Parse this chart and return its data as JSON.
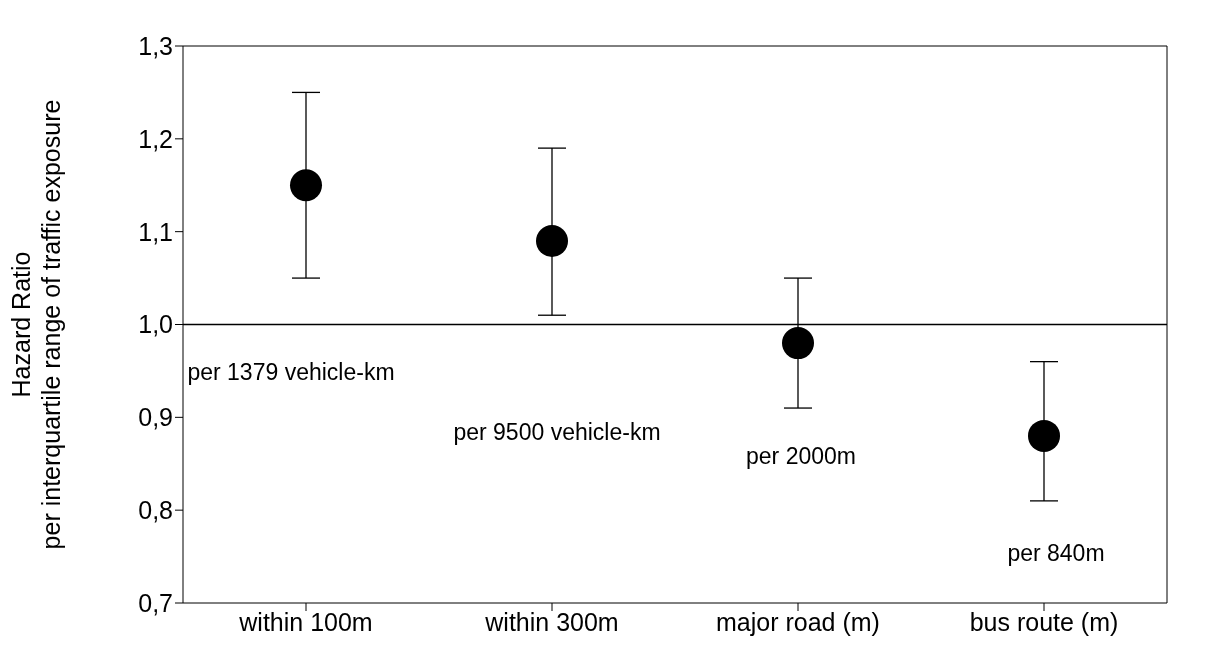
{
  "chart_data": {
    "type": "scatter",
    "ylabel": "Hazard Ratio\nper interquartile range of traffic exposure",
    "categories": [
      "within 100m",
      "within 300m",
      "major road (m)",
      "bus route (m)"
    ],
    "values": [
      1.15,
      1.09,
      0.98,
      0.88
    ],
    "errors": [
      [
        1.05,
        1.25
      ],
      [
        1.01,
        1.19
      ],
      [
        0.91,
        1.05
      ],
      [
        0.81,
        0.96
      ]
    ],
    "color": "#000000",
    "marker": "circle",
    "grid": false,
    "legend": false,
    "ylim": [
      0.7,
      1.3
    ],
    "yticks": [
      {
        "value": 0.7,
        "label": "0,7"
      },
      {
        "value": 0.8,
        "label": "0,8"
      },
      {
        "value": 0.9,
        "label": "0,9"
      },
      {
        "value": 1.0,
        "label": "1,0"
      },
      {
        "value": 1.1,
        "label": "1,1"
      },
      {
        "value": 1.2,
        "label": "1,2"
      },
      {
        "value": 1.3,
        "label": "1,3"
      }
    ],
    "ref_lines": [
      {
        "axis": "y",
        "value": 1.0,
        "color": "#000000"
      }
    ],
    "annotations": [
      "per 1379 vehicle-km",
      "per 9500 vehicle-km",
      "per 2000m",
      "per 840m"
    ]
  }
}
